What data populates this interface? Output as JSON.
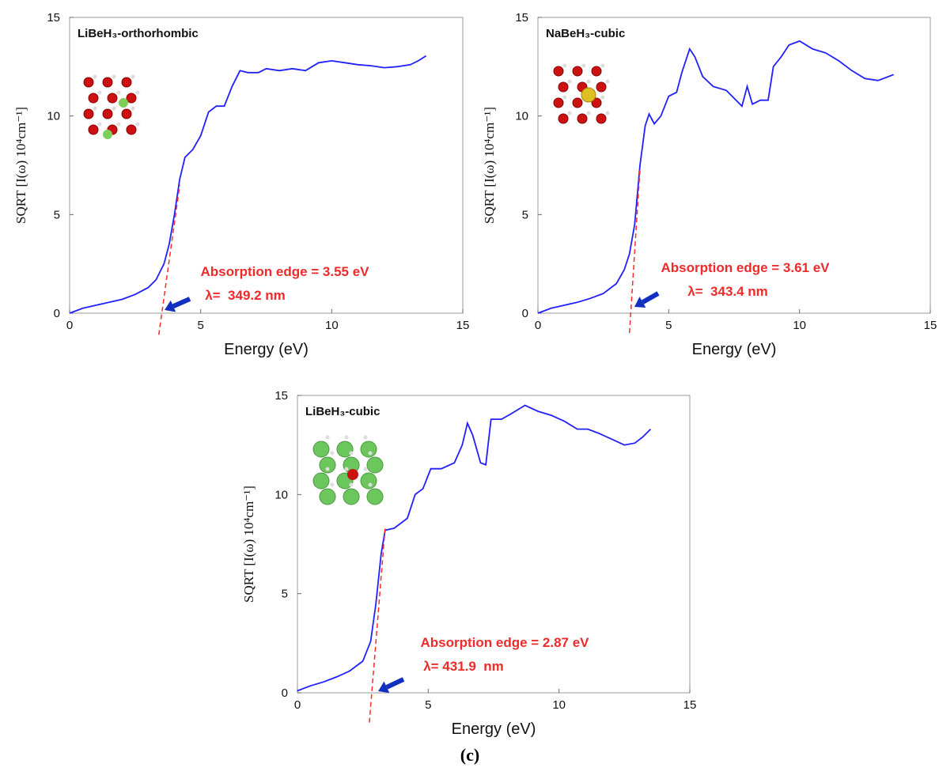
{
  "chart_data": [
    {
      "type": "line",
      "title": "LiBeH₃-orthorhombic",
      "x_label": "Energy (eV)",
      "y_label": "SQRT [I(ω) 10⁴cm⁻¹]",
      "annotations": [
        "Absorption edge = 3.55 eV",
        "λ=  349.2 nm"
      ],
      "x": [
        0,
        0.5,
        1,
        1.5,
        2,
        2.5,
        3,
        3.3,
        3.6,
        3.8,
        4.0,
        4.2,
        4.4,
        4.7,
        5.0,
        5.3,
        5.6,
        5.9,
        6.2,
        6.5,
        6.8,
        7.2,
        7.5,
        8,
        8.5,
        9,
        9.5,
        10,
        10.5,
        11,
        11.5,
        12,
        12.5,
        13,
        13.3,
        13.6
      ],
      "series": [
        {
          "color": "#2020ff",
          "values": [
            0,
            0.25,
            0.4,
            0.55,
            0.7,
            0.95,
            1.3,
            1.7,
            2.5,
            3.5,
            5,
            6.8,
            7.9,
            8.3,
            9.0,
            10.2,
            10.5,
            10.5,
            11.5,
            12.3,
            12.2,
            12.2,
            12.4,
            12.3,
            12.4,
            12.3,
            12.7,
            12.8,
            12.7,
            12.6,
            12.55,
            12.45,
            12.5,
            12.6,
            12.8,
            13.05
          ]
        }
      ],
      "tangent": {
        "color": "#ff2a2a",
        "x": [
          3.4,
          4.2
        ],
        "y": [
          -1.1,
          6.5
        ]
      },
      "xlim": [
        0,
        15
      ],
      "ylim": [
        0,
        15
      ],
      "xticks": [
        0,
        5,
        10,
        15
      ],
      "yticks": [
        0,
        5,
        10,
        15
      ]
    },
    {
      "type": "line",
      "title": "NaBeH₃-cubic",
      "x_label": "Energy (eV)",
      "y_label": "SQRT [I(ω) 10⁴cm⁻¹]",
      "annotations": [
        "Absorption edge = 3.61 eV",
        "λ=  343.4 nm"
      ],
      "x": [
        0,
        0.5,
        1,
        1.5,
        2,
        2.5,
        3,
        3.3,
        3.5,
        3.7,
        3.9,
        4.1,
        4.25,
        4.45,
        4.7,
        5.0,
        5.3,
        5.5,
        5.8,
        6.0,
        6.3,
        6.7,
        7.2,
        7.5,
        7.8,
        8.0,
        8.2,
        8.5,
        8.8,
        9.0,
        9.3,
        9.6,
        10,
        10.5,
        11,
        11.5,
        12,
        12.5,
        13,
        13.6
      ],
      "series": [
        {
          "color": "#2020ff",
          "values": [
            0,
            0.25,
            0.4,
            0.55,
            0.75,
            1.0,
            1.5,
            2.2,
            3.0,
            4.5,
            7.5,
            9.5,
            10.1,
            9.6,
            10.0,
            11.0,
            11.2,
            12.2,
            13.4,
            13.0,
            12.0,
            11.5,
            11.3,
            10.9,
            10.5,
            11.5,
            10.6,
            10.8,
            10.8,
            12.5,
            13.0,
            13.6,
            13.8,
            13.4,
            13.2,
            12.8,
            12.3,
            11.9,
            11.8,
            12.1
          ]
        }
      ],
      "tangent": {
        "color": "#ff2a2a",
        "x": [
          3.5,
          3.9
        ],
        "y": [
          -1.0,
          7.3
        ]
      },
      "xlim": [
        0,
        15
      ],
      "ylim": [
        0,
        15
      ],
      "xticks": [
        0,
        5,
        10,
        15
      ],
      "yticks": [
        0,
        5,
        10,
        15
      ]
    },
    {
      "type": "line",
      "title": "LiBeH₃-cubic",
      "x_label": "Energy (eV)",
      "y_label": "SQRT [I(ω) 10⁴cm⁻¹]",
      "annotations": [
        "Absorption edge = 2.87 eV",
        "λ= 431.9  nm"
      ],
      "x": [
        0,
        0.5,
        1,
        1.5,
        2,
        2.5,
        2.8,
        3.0,
        3.2,
        3.35,
        3.7,
        4.2,
        4.5,
        4.8,
        5.1,
        5.5,
        6.0,
        6.3,
        6.5,
        6.7,
        7.0,
        7.2,
        7.4,
        7.8,
        8.2,
        8.7,
        9.2,
        9.7,
        10.2,
        10.7,
        11.1,
        11.5,
        12,
        12.5,
        12.9,
        13.2,
        13.5
      ],
      "series": [
        {
          "color": "#2020ff",
          "values": [
            0.1,
            0.35,
            0.55,
            0.8,
            1.1,
            1.6,
            2.6,
            4.5,
            7.0,
            8.2,
            8.3,
            8.8,
            10.0,
            10.3,
            11.3,
            11.3,
            11.6,
            12.5,
            13.6,
            13.0,
            11.6,
            11.5,
            13.8,
            13.8,
            14.1,
            14.5,
            14.2,
            14.0,
            13.7,
            13.3,
            13.3,
            13.1,
            12.8,
            12.5,
            12.6,
            12.9,
            13.3
          ]
        }
      ],
      "tangent": {
        "color": "#ff2a2a",
        "x": [
          2.75,
          3.35
        ],
        "y": [
          -1.5,
          8.3
        ]
      },
      "xlim": [
        0,
        15
      ],
      "ylim": [
        0,
        15
      ],
      "xticks": [
        0,
        5,
        10,
        15
      ],
      "yticks": [
        0,
        5,
        10,
        15
      ]
    }
  ],
  "caption": "(c)"
}
